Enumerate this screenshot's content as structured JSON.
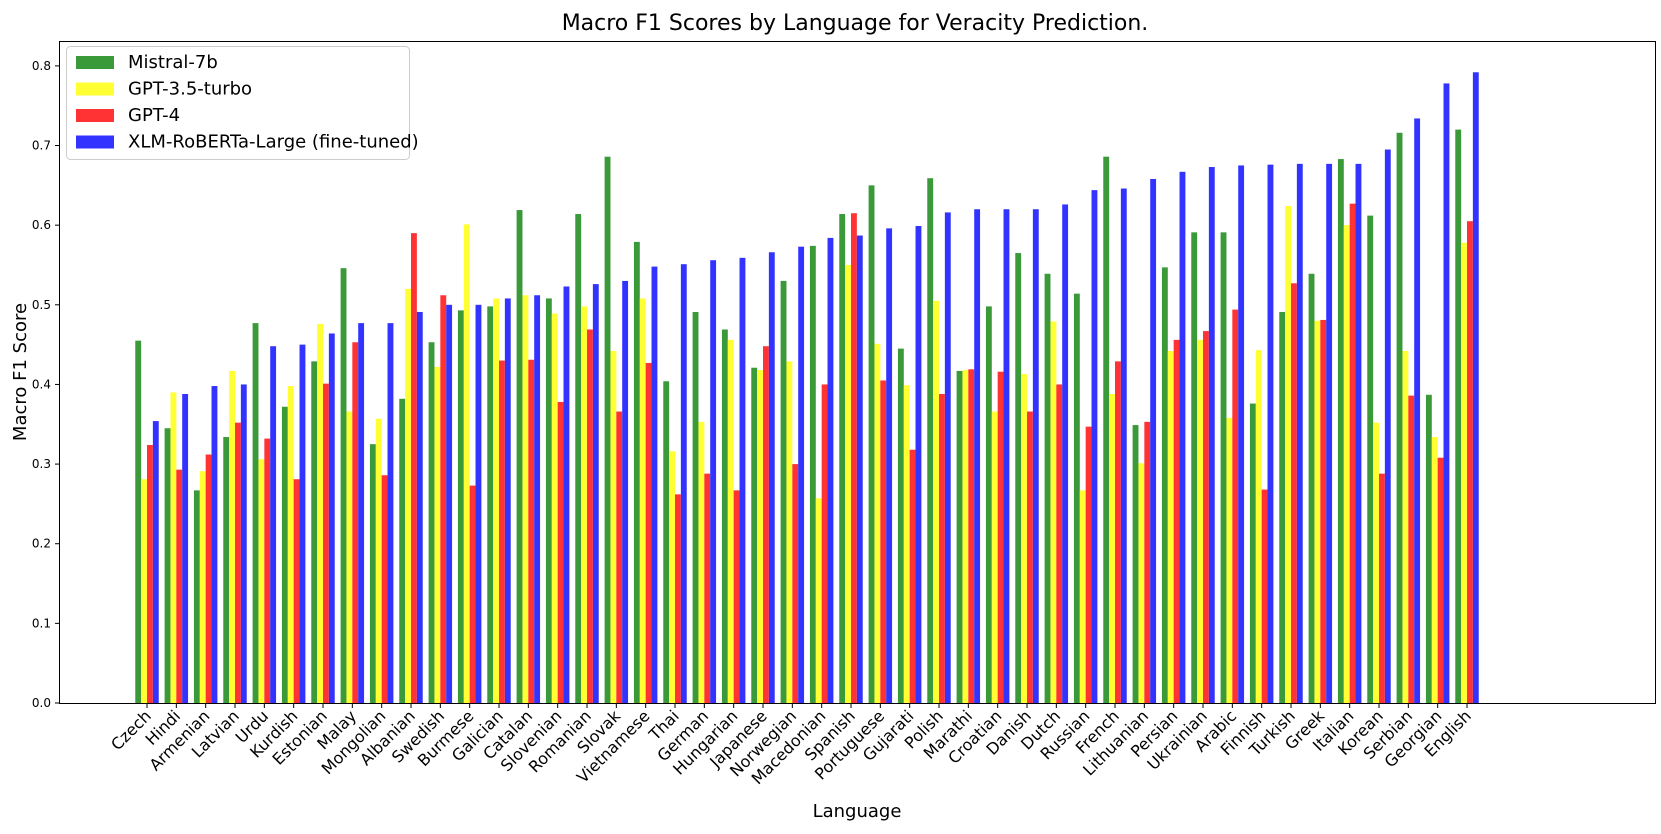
{
  "chart_data": {
    "type": "bar",
    "title": "Macro F1 Scores by Language for Veracity Prediction.",
    "xlabel": "Language",
    "ylabel": "Macro F1 Score",
    "ylim": [
      0,
      0.83
    ],
    "yticks": [
      "0.0",
      "0.1",
      "0.2",
      "0.3",
      "0.4",
      "0.5",
      "0.6",
      "0.7",
      "0.8"
    ],
    "grid": false,
    "legend_position": "top-left",
    "categories": [
      "Czech",
      "Hindi",
      "Armenian",
      "Latvian",
      "Urdu",
      "Kurdish",
      "Estonian",
      "Malay",
      "Mongolian",
      "Albanian",
      "Swedish",
      "Burmese",
      "Galician",
      "Catalan",
      "Slovenian",
      "Romanian",
      "Slovak",
      "Vietnamese",
      "Thai",
      "German",
      "Hungarian",
      "Japanese",
      "Norwegian",
      "Macedonian",
      "Spanish",
      "Portuguese",
      "Gujarati",
      "Polish",
      "Marathi",
      "Croatian",
      "Danish",
      "Dutch",
      "Russian",
      "French",
      "Lithuanian",
      "Persian",
      "Ukrainian",
      "Arabic",
      "Finnish",
      "Turkish",
      "Greek",
      "Italian",
      "Korean",
      "Serbian",
      "Georgian",
      "English"
    ],
    "series": [
      {
        "name": "Mistral-7b",
        "color": "#3a9a3a",
        "values": [
          0.455,
          0.345,
          0.267,
          0.334,
          0.477,
          0.372,
          0.429,
          0.546,
          0.325,
          0.382,
          0.453,
          0.493,
          0.498,
          0.619,
          0.508,
          0.614,
          0.686,
          0.579,
          0.404,
          0.491,
          0.469,
          0.421,
          0.53,
          0.574,
          0.614,
          0.65,
          0.445,
          0.659,
          0.417,
          0.498,
          0.565,
          0.539,
          0.514,
          0.686,
          0.349,
          0.547,
          0.591,
          0.591,
          0.376,
          0.491,
          0.539,
          0.683,
          0.612,
          0.716,
          0.387,
          0.72
        ]
      },
      {
        "name": "GPT-3.5-turbo",
        "color": "#ffff33",
        "values": [
          0.281,
          0.39,
          0.291,
          0.417,
          0.306,
          0.398,
          0.476,
          0.366,
          0.357,
          0.52,
          0.422,
          0.601,
          0.508,
          0.512,
          0.489,
          0.498,
          0.442,
          0.508,
          0.316,
          0.353,
          0.456,
          0.418,
          0.429,
          0.257,
          0.55,
          0.451,
          0.399,
          0.505,
          0.418,
          0.366,
          0.413,
          0.479,
          0.267,
          0.388,
          0.301,
          0.442,
          0.456,
          0.358,
          0.443,
          0.624,
          0.48,
          0.6,
          0.352,
          0.442,
          0.334,
          0.578
        ]
      },
      {
        "name": "GPT-4",
        "color": "#ff3333",
        "values": [
          0.324,
          0.293,
          0.312,
          0.352,
          0.332,
          0.281,
          0.401,
          0.453,
          0.286,
          0.59,
          0.512,
          0.273,
          0.43,
          0.431,
          0.378,
          0.469,
          0.366,
          0.427,
          0.262,
          0.288,
          0.267,
          0.448,
          0.3,
          0.4,
          0.615,
          0.405,
          0.318,
          0.388,
          0.419,
          0.416,
          0.366,
          0.4,
          0.347,
          0.429,
          0.353,
          0.456,
          0.467,
          0.494,
          0.268,
          0.527,
          0.481,
          0.627,
          0.288,
          0.386,
          0.308,
          0.605
        ]
      },
      {
        "name": "XLM-RoBERTa-Large (fine-tuned)",
        "color": "#3333ff",
        "values": [
          0.354,
          0.388,
          0.398,
          0.4,
          0.448,
          0.45,
          0.464,
          0.477,
          0.477,
          0.491,
          0.5,
          0.5,
          0.508,
          0.512,
          0.523,
          0.526,
          0.53,
          0.548,
          0.551,
          0.556,
          0.559,
          0.566,
          0.573,
          0.584,
          0.587,
          0.596,
          0.599,
          0.616,
          0.62,
          0.62,
          0.62,
          0.626,
          0.644,
          0.646,
          0.658,
          0.667,
          0.673,
          0.675,
          0.676,
          0.677,
          0.677,
          0.677,
          0.695,
          0.734,
          0.778,
          0.792
        ]
      }
    ]
  }
}
